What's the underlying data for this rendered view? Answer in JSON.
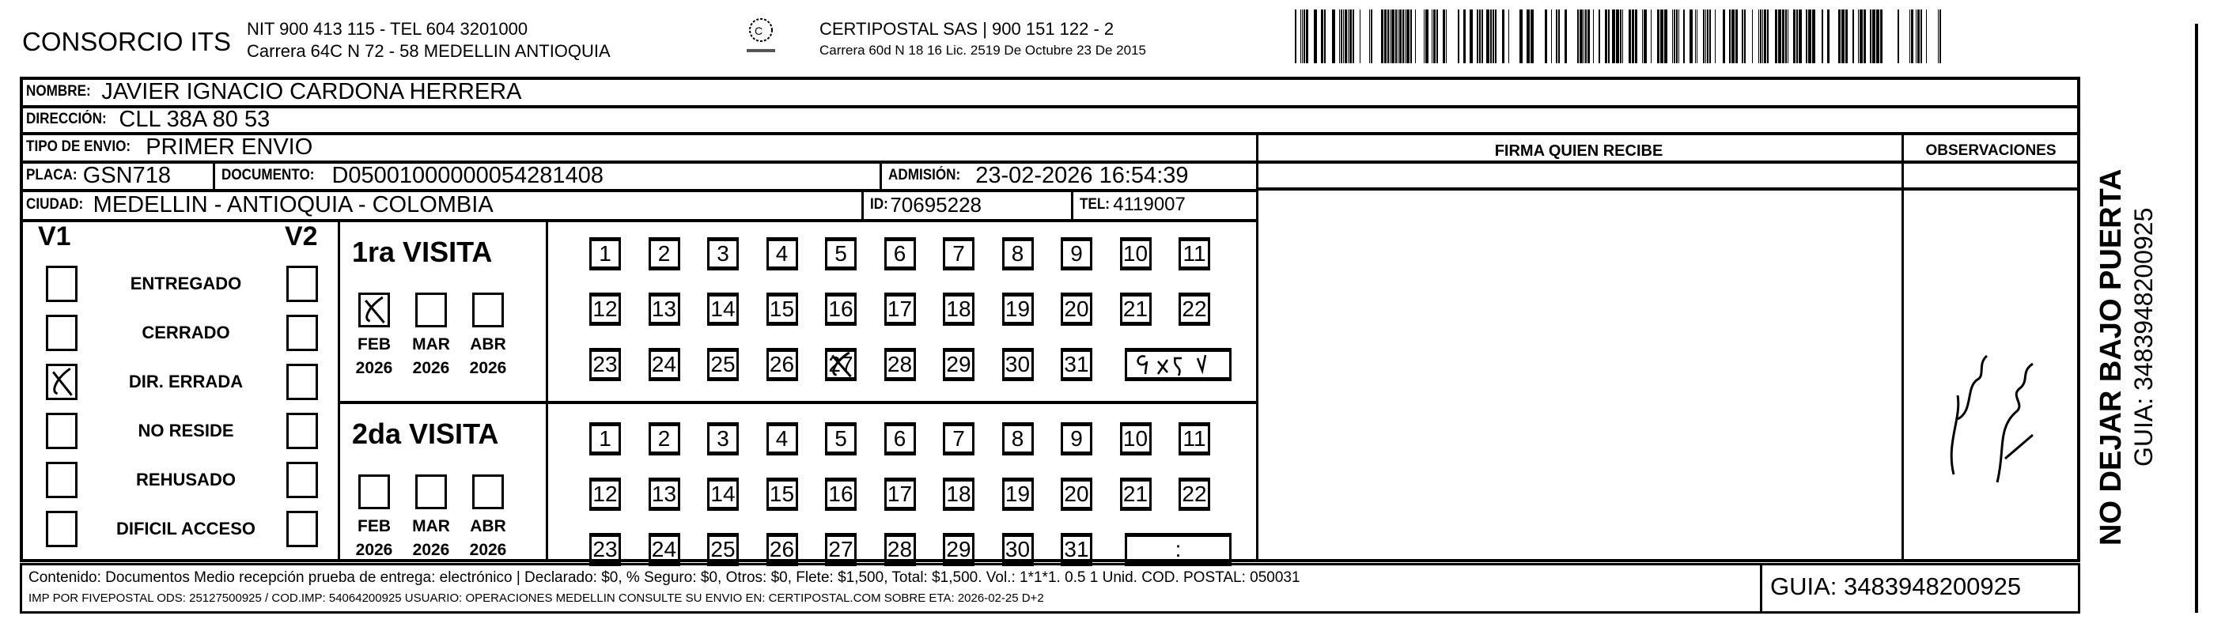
{
  "header": {
    "company": "CONSORCIO ITS",
    "company_line1": "NIT 900 413 115 - TEL 604 3201000",
    "company_line2": "Carrera 64C N 72 - 58 MEDELLIN ANTIOQUIA",
    "carrier_line1": "CERTIPOSTAL SAS | 900 151 122 - 2",
    "carrier_line2": "Carrera 60d N 18 16  Lic. 2519 De Octubre 23 De 2015"
  },
  "fields": {
    "nombre_label": "NOMBRE:",
    "nombre": "JAVIER IGNACIO CARDONA HERRERA",
    "direccion_label": "DIRECCIÓN:",
    "direccion": "CLL 38A 80 53",
    "tipo_label": "TIPO DE ENVIO:",
    "tipo": "PRIMER ENVIO",
    "placa_label": "PLACA:",
    "placa": "GSN718",
    "documento_label": "DOCUMENTO:",
    "documento": "D05001000000054281408",
    "admision_label": "ADMISIÓN:",
    "admision": "23-02-2026 16:54:39",
    "ciudad_label": "CIUDAD:",
    "ciudad": "MEDELLIN - ANTIOQUIA - COLOMBIA",
    "id_label": "ID:",
    "id": "70695228",
    "tel_label": "TEL:",
    "tel": "4119007"
  },
  "columns": {
    "firma": "FIRMA QUIEN RECIBE",
    "observaciones": "OBSERVACIONES"
  },
  "status": {
    "v1_label": "V1",
    "v2_label": "V2",
    "options": [
      {
        "label": "ENTREGADO",
        "v1": false,
        "v2": false
      },
      {
        "label": "CERRADO",
        "v1": false,
        "v2": false
      },
      {
        "label": "DIR. ERRADA",
        "v1": true,
        "v2": false
      },
      {
        "label": "NO RESIDE",
        "v1": false,
        "v2": false
      },
      {
        "label": "REHUSADO",
        "v1": false,
        "v2": false
      },
      {
        "label": "DIFICIL ACCESO",
        "v1": false,
        "v2": false
      }
    ]
  },
  "visits": [
    {
      "title": "1ra VISITA",
      "months": [
        {
          "m": "FEB",
          "y": "2026",
          "checked": true
        },
        {
          "m": "MAR",
          "y": "2026",
          "checked": false
        },
        {
          "m": "ABR",
          "y": "2026",
          "checked": false
        }
      ],
      "marked_day": 27,
      "time": ""
    },
    {
      "title": "2da VISITA",
      "months": [
        {
          "m": "FEB",
          "y": "2026",
          "checked": false
        },
        {
          "m": "MAR",
          "y": "2026",
          "checked": false
        },
        {
          "m": "ABR",
          "y": "2026",
          "checked": false
        }
      ],
      "marked_day": null,
      "time": ":"
    }
  ],
  "footer": {
    "line1": "Contenido: Documentos Medio recepción prueba de entrega: electrónico | Declarado: $0, % Seguro: $0, Otros: $0, Flete: $1,500, Total: $1,500. Vol.: 1*1*1. 0.5  1 Unid. COD. POSTAL: 050031",
    "line2": "IMP POR FIVEPOSTAL ODS: 25127500925 / COD.IMP: 54064200925 USUARIO: OPERACIONES MEDELLIN CONSULTE SU ENVIO EN: CERTIPOSTAL.COM SOBRE ETA: 2026-02-25 D+2",
    "guia": "GUIA: 3483948200925"
  },
  "side": {
    "notice": "NO DEJAR BAJO PUERTA",
    "guia": "GUIA: 3483948200925"
  }
}
